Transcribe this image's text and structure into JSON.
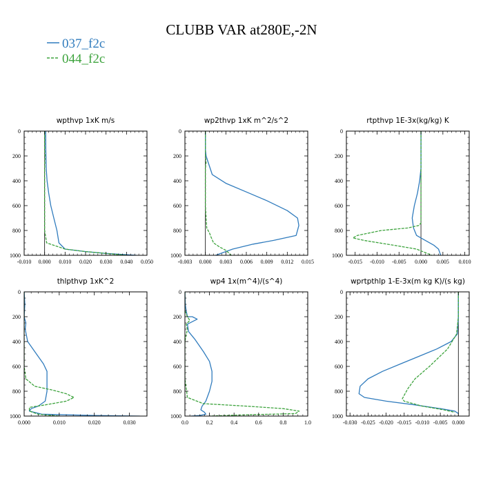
{
  "figure": {
    "title": "CLUBB VAR at280E,-2N",
    "legend": [
      {
        "label": "037_f2c",
        "color": "#2f7bbd"
      },
      {
        "label": "044_f2c",
        "color": "#3da33d",
        "dashed": true
      }
    ]
  },
  "chart_data": [
    {
      "type": "line",
      "title": "wpthvp  1xK m/s",
      "xlim": [
        -0.01,
        0.05
      ],
      "xticks": [
        "-0.010",
        "0.000",
        "0.010",
        "0.020",
        "0.030",
        "0.040",
        "0.050"
      ],
      "ylim": [
        0,
        1000
      ],
      "y_reversed": true,
      "yticks": [
        "0",
        "200",
        "400",
        "600",
        "800",
        "1000"
      ],
      "series": [
        {
          "name": "037_f2c",
          "x": [
            0.0005,
            0.0006,
            0.0008,
            0.0012,
            0.002,
            0.003,
            0.0045,
            0.006,
            0.007,
            0.01,
            0.02,
            0.03,
            0.045
          ],
          "y": [
            0,
            150,
            300,
            400,
            500,
            600,
            700,
            800,
            900,
            950,
            970,
            985,
            1000
          ]
        },
        {
          "name": "044_f2c",
          "x": [
            0,
            0,
            0.0002,
            0,
            0,
            0,
            0,
            0,
            0,
            0.001,
            0.01,
            0.02,
            0.03,
            0.04
          ],
          "y": [
            0,
            150,
            200,
            300,
            400,
            500,
            600,
            700,
            800,
            900,
            950,
            970,
            985,
            1000
          ]
        }
      ]
    },
    {
      "type": "line",
      "title": "wp2thvp  1xK m^2/s^2",
      "xlim": [
        -0.003,
        0.015
      ],
      "xticks": [
        "-0.003",
        "0.000",
        "0.003",
        "0.006",
        "0.009",
        "0.012",
        "0.015"
      ],
      "ylim": [
        0,
        1000
      ],
      "y_reversed": true,
      "yticks": [
        "0",
        "200",
        "400",
        "600",
        "800",
        "1000"
      ],
      "series": [
        {
          "name": "037_f2c",
          "x": [
            0,
            0,
            0.0001,
            0.0004,
            0.001,
            0.003,
            0.006,
            0.009,
            0.012,
            0.0135,
            0.0137,
            0.0133,
            0.01,
            0.007,
            0.004,
            0.0015
          ],
          "y": [
            0,
            150,
            200,
            250,
            350,
            420,
            490,
            560,
            640,
            700,
            760,
            840,
            880,
            910,
            950,
            1000
          ]
        },
        {
          "name": "044_f2c",
          "x": [
            0,
            0,
            0.0001,
            0,
            0,
            0,
            0.0002,
            0.0006,
            0.0008,
            0.0012,
            0.002,
            0.003,
            0.0038
          ],
          "y": [
            0,
            200,
            250,
            300,
            400,
            600,
            780,
            820,
            850,
            900,
            930,
            960,
            1000
          ]
        }
      ]
    },
    {
      "type": "line",
      "title": "rtpthvp  1E-3x(kg/kg) K",
      "xlim": [
        -0.017,
        0.011
      ],
      "xticks": [
        "-0.015",
        "-0.010",
        "-0.005",
        "0.000",
        "0.005",
        "0.010"
      ],
      "ylim": [
        0,
        1000
      ],
      "y_reversed": true,
      "yticks": [
        "0",
        "200",
        "400",
        "600",
        "800",
        "1000"
      ],
      "series": [
        {
          "name": "037_f2c",
          "x": [
            0,
            0,
            0,
            -0.0003,
            -0.0008,
            -0.0015,
            -0.002,
            -0.0017,
            -0.001,
            0.001,
            0.003,
            0.004,
            0.0045
          ],
          "y": [
            0,
            200,
            300,
            400,
            500,
            600,
            700,
            780,
            840,
            880,
            920,
            950,
            1000
          ]
        },
        {
          "name": "044_f2c",
          "x": [
            0,
            0,
            0,
            0,
            0,
            0,
            -0.0005,
            -0.003,
            -0.009,
            -0.0145,
            -0.0155,
            -0.013,
            -0.006,
            -0.001,
            0.0025
          ],
          "y": [
            0,
            200,
            400,
            600,
            700,
            740,
            760,
            780,
            800,
            840,
            860,
            880,
            920,
            950,
            1000
          ]
        }
      ]
    },
    {
      "type": "line",
      "title": "thlpthvp  1xK^2",
      "xlim": [
        0,
        0.035
      ],
      "xticks": [
        "0.000",
        "0.010",
        "0.020",
        "0.030"
      ],
      "ylim": [
        0,
        1000
      ],
      "y_reversed": true,
      "yticks": [
        "0",
        "200",
        "400",
        "600",
        "800",
        "1000"
      ],
      "series": [
        {
          "name": "037_f2c",
          "x": [
            0,
            0.0002,
            0,
            0.0005,
            0.0003,
            0.001,
            0.0035,
            0.0055,
            0.0065,
            0.0065,
            0.0065,
            0.006,
            0.004,
            0.002,
            0.0015,
            0.005,
            0.02,
            0.033
          ],
          "y": [
            0,
            100,
            200,
            250,
            300,
            400,
            500,
            580,
            640,
            700,
            800,
            880,
            920,
            940,
            960,
            985,
            995,
            1000
          ]
        },
        {
          "name": "044_f2c",
          "x": [
            0,
            0,
            0,
            0,
            0.0005,
            0.003,
            0.008,
            0.012,
            0.0142,
            0.012,
            0.006,
            0.0015,
            0.0015,
            0.004,
            0.01
          ],
          "y": [
            0,
            200,
            400,
            600,
            700,
            760,
            790,
            820,
            850,
            880,
            910,
            930,
            960,
            985,
            1000
          ]
        }
      ]
    },
    {
      "type": "line",
      "title": "wp4  1x(m^4)/(s^4)",
      "xlim": [
        0,
        1.0
      ],
      "xticks": [
        "0.0",
        "0.2",
        "0.4",
        "0.6",
        "0.8",
        "1.0"
      ],
      "ylim": [
        0,
        1000
      ],
      "y_reversed": true,
      "yticks": [
        "0",
        "200",
        "400",
        "600",
        "800",
        "1000"
      ],
      "series": [
        {
          "name": "037_f2c",
          "x": [
            0,
            0.003,
            0.01,
            0.02,
            0.06,
            0.1,
            0.02,
            0.03,
            0.08,
            0.15,
            0.2,
            0.22,
            0.22,
            0.2,
            0.17,
            0.14,
            0.13,
            0.16,
            0.17,
            0.12,
            0.05
          ],
          "y": [
            0,
            100,
            150,
            200,
            200,
            220,
            260,
            320,
            380,
            480,
            560,
            640,
            720,
            800,
            880,
            920,
            950,
            970,
            985,
            995,
            1000
          ]
        },
        {
          "name": "044_f2c",
          "x": [
            0,
            0,
            0.02,
            0.04,
            0.01,
            0.02,
            0.01,
            0,
            0,
            0.02,
            0.15,
            0.5,
            0.8,
            0.93,
            0.9,
            0.5,
            0.2
          ],
          "y": [
            0,
            150,
            200,
            230,
            260,
            300,
            350,
            400,
            700,
            850,
            900,
            920,
            940,
            960,
            980,
            990,
            1000
          ]
        }
      ]
    },
    {
      "type": "line",
      "title": "wprtpthlp  1-E-3x(m kg K)/(s kg)",
      "xlim": [
        -0.031,
        0.003
      ],
      "xticks": [
        "-0.030",
        "-0.025",
        "-0.020",
        "-0.015",
        "-0.010",
        "-0.005",
        "0.000"
      ],
      "ylim": [
        0,
        1000
      ],
      "y_reversed": true,
      "yticks": [
        "0",
        "200",
        "400",
        "600",
        "800",
        "1000"
      ],
      "series": [
        {
          "name": "037_f2c",
          "x": [
            0,
            0,
            -0.0003,
            -0.002,
            -0.006,
            -0.011,
            -0.016,
            -0.021,
            -0.025,
            -0.0272,
            -0.0275,
            -0.026,
            -0.02,
            -0.012,
            -0.005,
            -0.001,
            0
          ],
          "y": [
            0,
            200,
            340,
            400,
            460,
            520,
            580,
            640,
            700,
            760,
            820,
            850,
            880,
            910,
            940,
            960,
            980
          ]
        },
        {
          "name": "044_f2c",
          "x": [
            0,
            0,
            -0.0005,
            -0.003,
            -0.008,
            -0.012,
            -0.014,
            -0.0155,
            -0.015,
            -0.01,
            -0.004,
            -0.001
          ],
          "y": [
            0,
            200,
            340,
            460,
            600,
            700,
            780,
            860,
            880,
            920,
            950,
            970
          ]
        }
      ]
    }
  ]
}
